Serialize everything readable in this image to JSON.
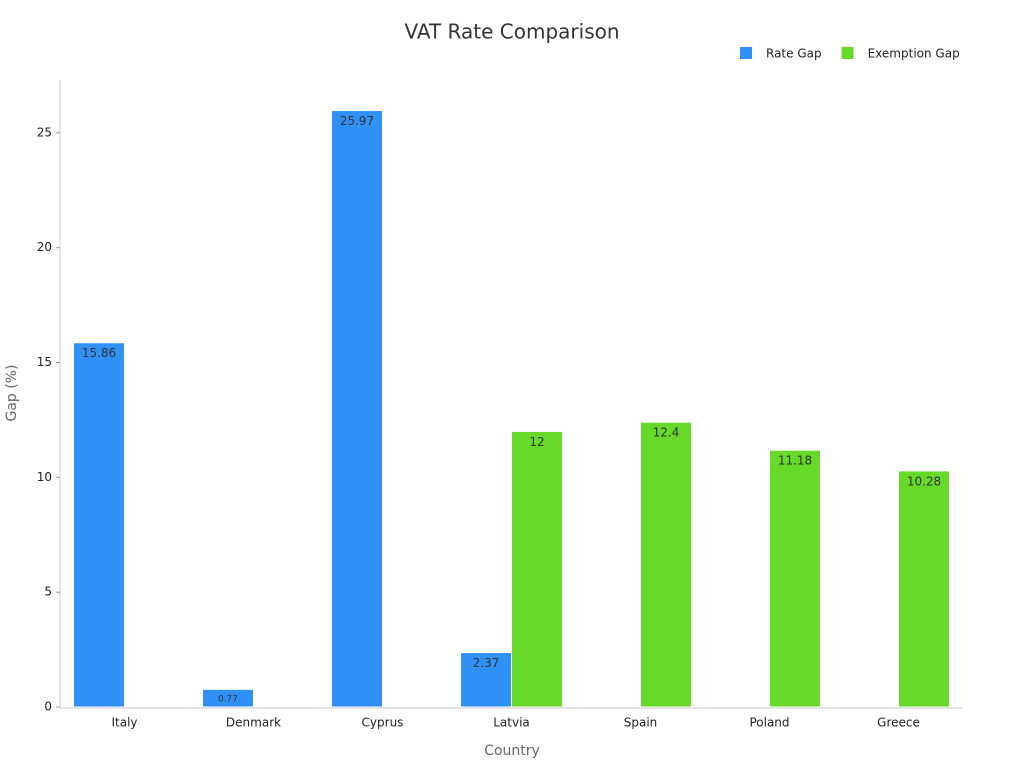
{
  "chart_data": {
    "type": "bar",
    "title": "VAT Rate Comparison",
    "x_label": "Country",
    "y_label": "Gap (%)",
    "categories": [
      "Italy",
      "Denmark",
      "Cyprus",
      "Latvia",
      "Spain",
      "Poland",
      "Greece"
    ],
    "series": [
      {
        "name": "Rate Gap",
        "color": "#2f91f5",
        "values": [
          15.86,
          0.77,
          25.97,
          2.37,
          null,
          null,
          null
        ]
      },
      {
        "name": "Exemption Gap",
        "color": "#66d929",
        "values": [
          null,
          null,
          null,
          12,
          12.4,
          11.18,
          10.28
        ]
      }
    ],
    "ylim": [
      0,
      27.3
    ],
    "yticks": [
      0,
      5,
      10,
      15,
      20,
      25
    ],
    "grid": false,
    "legend": "top-right"
  }
}
